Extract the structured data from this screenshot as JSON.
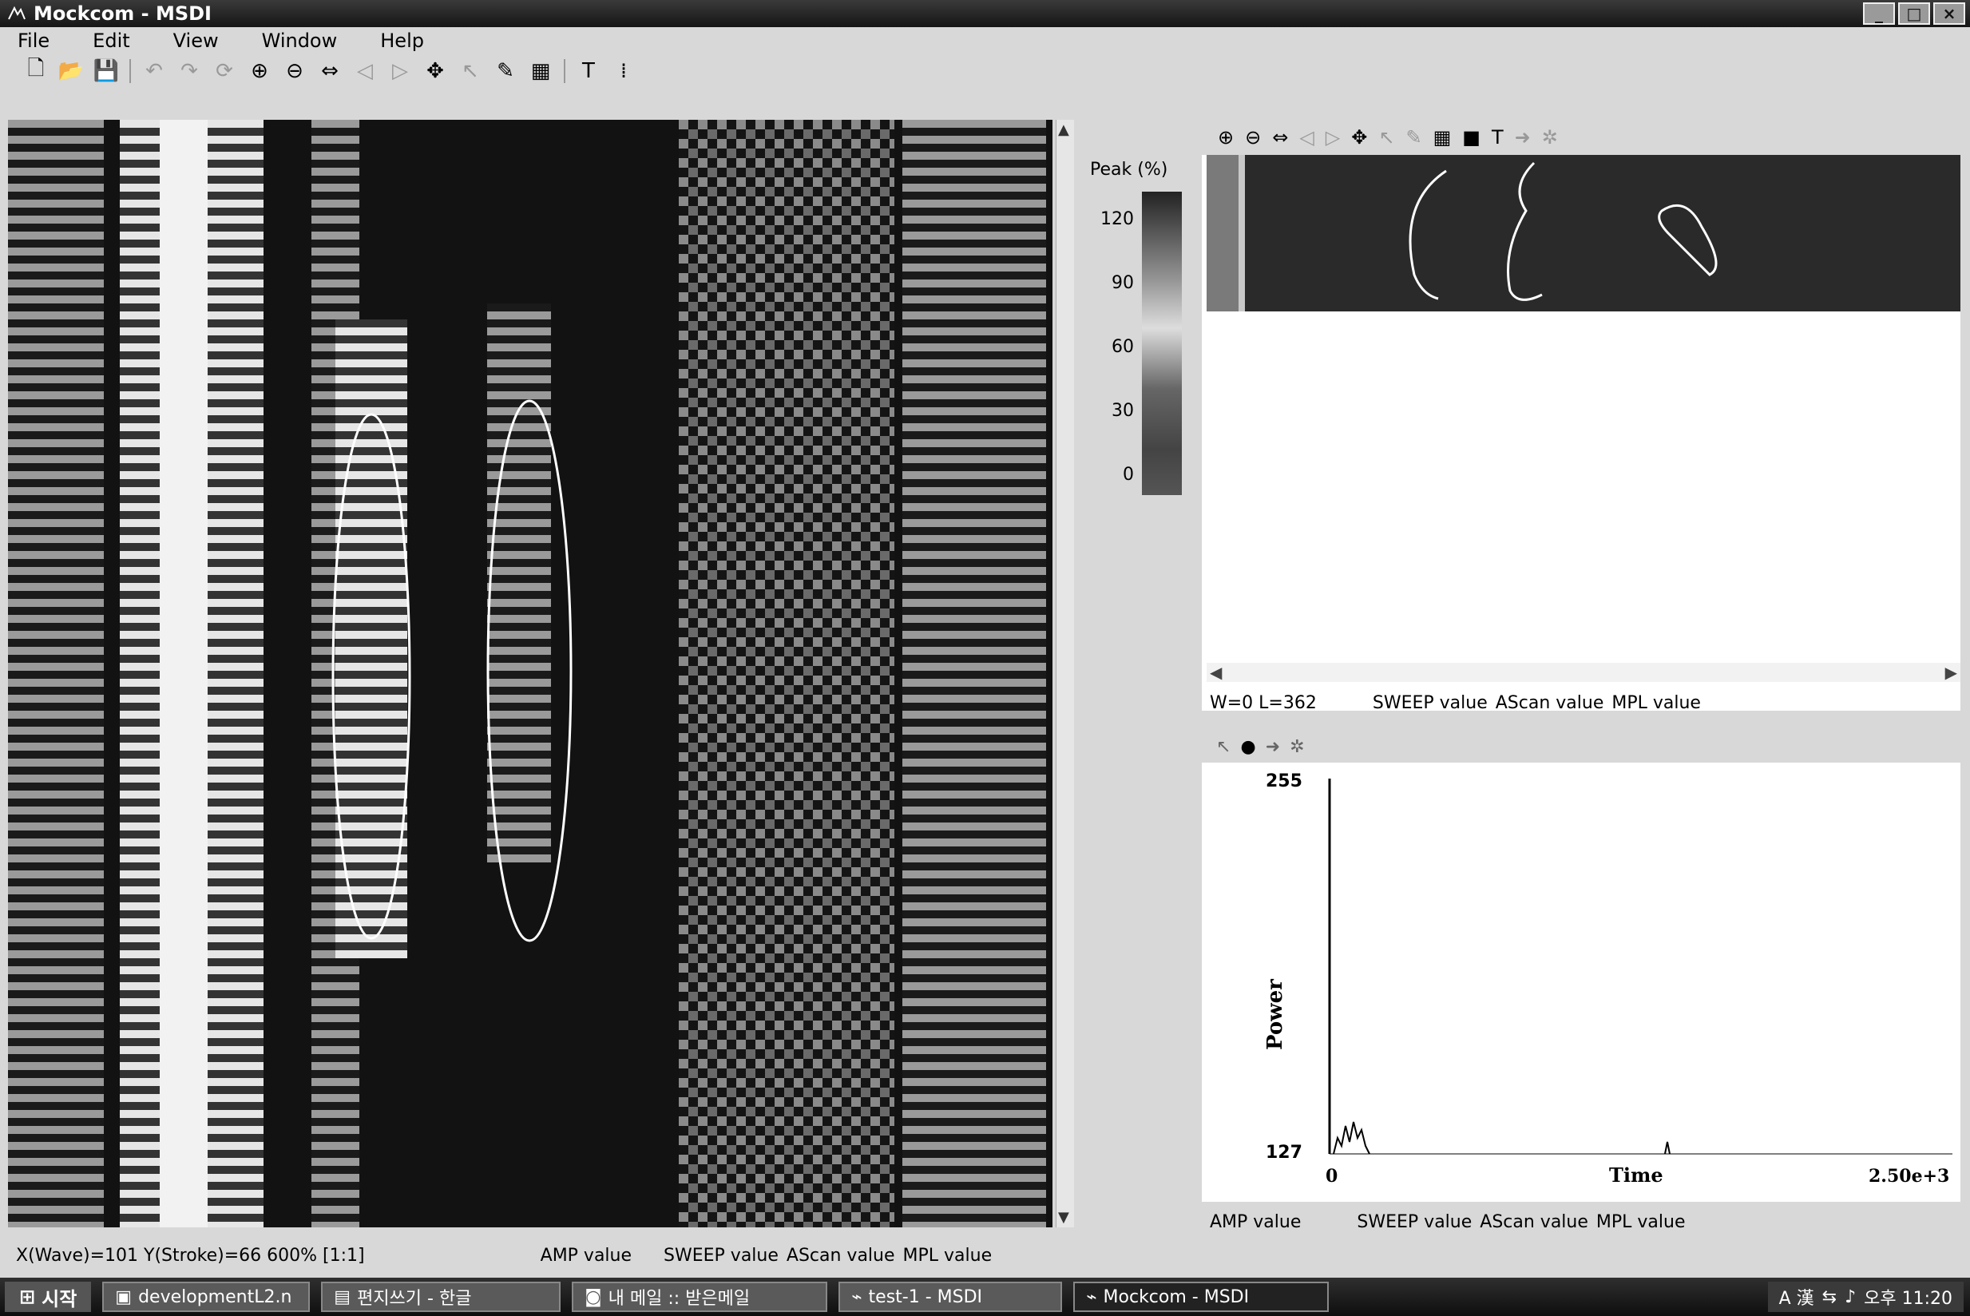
{
  "window": {
    "title": "Mockcom - MSDI"
  },
  "menu": [
    "File",
    "Edit",
    "View",
    "Window",
    "Help"
  ],
  "colorbar": {
    "title": "Peak (%)",
    "ticks": [
      "120",
      "90",
      "60",
      "30",
      "0"
    ]
  },
  "main_status": {
    "position": "X(Wave)=101 Y(Stroke)=66  600% [1:1]",
    "amp": "AMP value",
    "sweep": "SWEEP value",
    "ascan": "AScan value",
    "mpl": "MPL value"
  },
  "rt_status": {
    "position": "W=0 L=362",
    "sweep": "SWEEP value",
    "ascan": "AScan value",
    "mpl": "MPL value"
  },
  "rb_status": {
    "amp": "AMP value",
    "sweep": "SWEEP value",
    "ascan": "AScan value",
    "mpl": "MPL value"
  },
  "chart_data": {
    "type": "line",
    "xlabel": "Time",
    "ylabel": "Power",
    "x_ticks": [
      "0",
      "2.50e+3"
    ],
    "y_ticks": [
      "255",
      "127"
    ]
  },
  "taskbar": {
    "start": "시작",
    "buttons": [
      "developmentL2.n",
      "편지쓰기 - 한글",
      "내 메일 :: 받은메일",
      "test-1 - MSDI",
      "Mockcom - MSDI"
    ],
    "tray_ime": "A 漢",
    "clock": "오후 11:20"
  }
}
